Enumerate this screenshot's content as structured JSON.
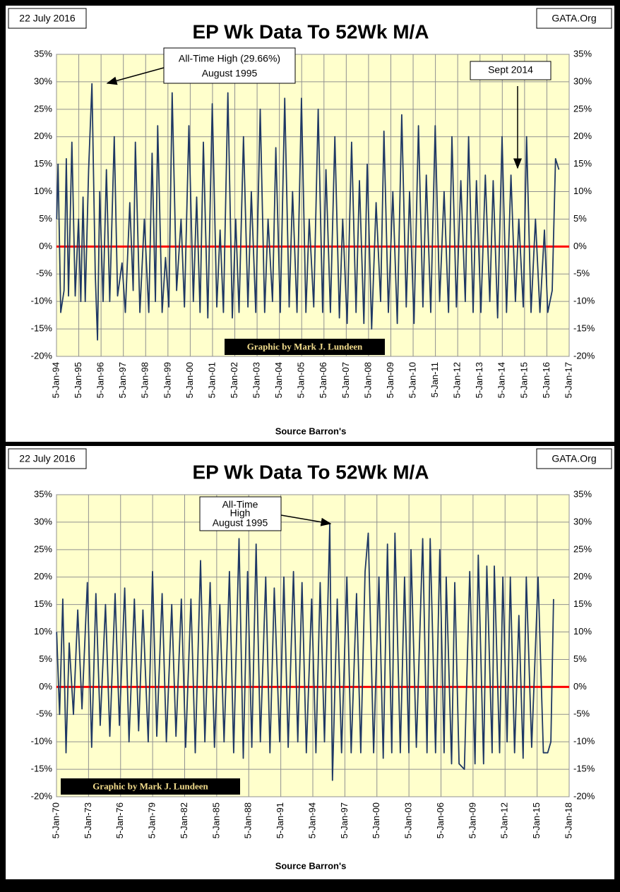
{
  "chart_data": [
    {
      "type": "line",
      "title": "EP Wk Data To 52Wk M/A",
      "date_label": "22 July 2016",
      "site_label": "GATA.Org",
      "source_label": "Source Barron's",
      "credit": "Graphic by Mark J. Lundeen",
      "annotations": [
        "All-Time High (29.66%)",
        "August 1995",
        "Sept 2014"
      ],
      "color": "#1f3864",
      "grid": true,
      "reference_line": {
        "value": 0,
        "color": "#ff0000"
      },
      "xlim": [
        1994.01,
        2017.01
      ],
      "ylim": [
        -20,
        35
      ],
      "yticks": [
        {
          "value": -20,
          "label": "-20%"
        },
        {
          "value": -15,
          "label": "-15%"
        },
        {
          "value": -10,
          "label": "-10%"
        },
        {
          "value": -5,
          "label": "-5%"
        },
        {
          "value": 0,
          "label": "0%"
        },
        {
          "value": 5,
          "label": "5%"
        },
        {
          "value": 10,
          "label": "10%"
        },
        {
          "value": 15,
          "label": "15%"
        },
        {
          "value": 20,
          "label": "20%"
        },
        {
          "value": 25,
          "label": "25%"
        },
        {
          "value": 30,
          "label": "30%"
        },
        {
          "value": 35,
          "label": "35%"
        }
      ],
      "xticks": [
        {
          "value": 1994.01,
          "label": "5-Jan-94"
        },
        {
          "value": 1995.01,
          "label": "5-Jan-95"
        },
        {
          "value": 1996.01,
          "label": "5-Jan-96"
        },
        {
          "value": 1997.01,
          "label": "5-Jan-97"
        },
        {
          "value": 1998.01,
          "label": "5-Jan-98"
        },
        {
          "value": 1999.01,
          "label": "5-Jan-99"
        },
        {
          "value": 2000.01,
          "label": "5-Jan-00"
        },
        {
          "value": 2001.01,
          "label": "5-Jan-01"
        },
        {
          "value": 2002.01,
          "label": "5-Jan-02"
        },
        {
          "value": 2003.01,
          "label": "5-Jan-03"
        },
        {
          "value": 2004.01,
          "label": "5-Jan-04"
        },
        {
          "value": 2005.01,
          "label": "5-Jan-05"
        },
        {
          "value": 2006.01,
          "label": "5-Jan-06"
        },
        {
          "value": 2007.01,
          "label": "5-Jan-07"
        },
        {
          "value": 2008.01,
          "label": "5-Jan-08"
        },
        {
          "value": 2009.01,
          "label": "5-Jan-09"
        },
        {
          "value": 2010.01,
          "label": "5-Jan-10"
        },
        {
          "value": 2011.01,
          "label": "5-Jan-11"
        },
        {
          "value": 2012.01,
          "label": "5-Jan-12"
        },
        {
          "value": 2013.01,
          "label": "5-Jan-13"
        },
        {
          "value": 2014.01,
          "label": "5-Jan-14"
        },
        {
          "value": 2015.01,
          "label": "5-Jan-15"
        },
        {
          "value": 2016.01,
          "label": "5-Jan-16"
        },
        {
          "value": 2017.01,
          "label": "5-Jan-17"
        }
      ],
      "x": [
        1994.02,
        1994.08,
        1994.2,
        1994.35,
        1994.45,
        1994.55,
        1994.7,
        1994.85,
        1995.0,
        1995.1,
        1995.2,
        1995.3,
        1995.45,
        1995.6,
        1995.75,
        1995.85,
        1995.95,
        1996.1,
        1996.25,
        1996.4,
        1996.6,
        1996.75,
        1996.95,
        1997.1,
        1997.3,
        1997.45,
        1997.55,
        1997.75,
        1997.95,
        1998.15,
        1998.3,
        1998.45,
        1998.55,
        1998.75,
        1998.9,
        1999.05,
        1999.2,
        1999.4,
        1999.6,
        1999.75,
        1999.95,
        2000.15,
        2000.3,
        2000.45,
        2000.6,
        2000.8,
        2001.0,
        2001.2,
        2001.35,
        2001.5,
        2001.7,
        2001.9,
        2002.05,
        2002.2,
        2002.4,
        2002.6,
        2002.75,
        2002.95,
        2003.15,
        2003.35,
        2003.5,
        2003.7,
        2003.85,
        2004.05,
        2004.25,
        2004.45,
        2004.6,
        2004.8,
        2005.0,
        2005.2,
        2005.35,
        2005.55,
        2005.75,
        2005.95,
        2006.1,
        2006.3,
        2006.5,
        2006.7,
        2006.85,
        2007.05,
        2007.25,
        2007.45,
        2007.6,
        2007.8,
        2007.95,
        2008.15,
        2008.35,
        2008.55,
        2008.7,
        2008.9,
        2009.1,
        2009.3,
        2009.5,
        2009.7,
        2009.85,
        2010.05,
        2010.25,
        2010.45,
        2010.6,
        2010.8,
        2011.0,
        2011.2,
        2011.4,
        2011.6,
        2011.75,
        2011.95,
        2012.15,
        2012.35,
        2012.5,
        2012.7,
        2012.85,
        2013.05,
        2013.25,
        2013.45,
        2013.6,
        2013.8,
        2014.0,
        2014.2,
        2014.4,
        2014.6,
        2014.75,
        2014.95,
        2015.1,
        2015.3,
        2015.5,
        2015.7,
        2015.9,
        2016.05,
        2016.25,
        2016.4,
        2016.55
      ],
      "values": [
        5,
        15,
        -12,
        -8,
        16,
        -9,
        19,
        -9,
        5,
        -10,
        9,
        -10,
        14,
        29.66,
        -5,
        -17,
        10,
        -10,
        14,
        -10,
        20,
        -9,
        -3,
        -12,
        8,
        -8,
        19,
        -12,
        5,
        -12,
        17,
        -10,
        22,
        -12,
        -2,
        -11,
        28,
        -8,
        5,
        -11,
        22,
        -10,
        9,
        -12,
        19,
        -13,
        26,
        -11,
        3,
        -12,
        28,
        -13,
        5,
        -12,
        20,
        -11,
        10,
        -12,
        25,
        -12,
        5,
        -10,
        18,
        -12,
        27,
        -11,
        10,
        -12,
        27,
        -12,
        5,
        -11,
        25,
        -12,
        14,
        -12,
        20,
        -13,
        5,
        -14,
        19,
        -12,
        12,
        -14,
        15,
        -15,
        8,
        -10,
        21,
        -12,
        10,
        -14,
        24,
        -11,
        10,
        -14,
        22,
        -11,
        13,
        -12,
        22,
        -10,
        10,
        -12,
        20,
        -11,
        12,
        -10,
        20,
        -12,
        12,
        -12,
        13,
        -10,
        12,
        -13,
        20,
        -12,
        13,
        -10,
        5,
        -11,
        20,
        -12,
        5,
        -12,
        3,
        -12,
        -8,
        16,
        14
      ]
    },
    {
      "type": "line",
      "title": "EP Wk Data To 52Wk M/A",
      "date_label": "22 July 2016",
      "site_label": "GATA.Org",
      "source_label": "Source Barron's",
      "credit": "Graphic by Mark J. Lundeen",
      "annotations": [
        "All-Time",
        "High",
        "August 1995"
      ],
      "color": "#1f3864",
      "grid": true,
      "reference_line": {
        "value": 0,
        "color": "#ff0000"
      },
      "xlim": [
        1970.01,
        2018.01
      ],
      "ylim": [
        -20,
        35
      ],
      "yticks": [
        {
          "value": -20,
          "label": "-20%"
        },
        {
          "value": -15,
          "label": "-15%"
        },
        {
          "value": -10,
          "label": "-10%"
        },
        {
          "value": -5,
          "label": "-5%"
        },
        {
          "value": 0,
          "label": "0%"
        },
        {
          "value": 5,
          "label": "5%"
        },
        {
          "value": 10,
          "label": "10%"
        },
        {
          "value": 15,
          "label": "15%"
        },
        {
          "value": 20,
          "label": "20%"
        },
        {
          "value": 25,
          "label": "25%"
        },
        {
          "value": 30,
          "label": "30%"
        },
        {
          "value": 35,
          "label": "35%"
        }
      ],
      "xticks": [
        {
          "value": 1970.01,
          "label": "5-Jan-70"
        },
        {
          "value": 1973.01,
          "label": "5-Jan-73"
        },
        {
          "value": 1976.01,
          "label": "5-Jan-76"
        },
        {
          "value": 1979.01,
          "label": "5-Jan-79"
        },
        {
          "value": 1982.01,
          "label": "5-Jan-82"
        },
        {
          "value": 1985.01,
          "label": "5-Jan-85"
        },
        {
          "value": 1988.01,
          "label": "5-Jan-88"
        },
        {
          "value": 1991.01,
          "label": "5-Jan-91"
        },
        {
          "value": 1994.01,
          "label": "5-Jan-94"
        },
        {
          "value": 1997.01,
          "label": "5-Jan-97"
        },
        {
          "value": 2000.01,
          "label": "5-Jan-00"
        },
        {
          "value": 2003.01,
          "label": "5-Jan-03"
        },
        {
          "value": 2006.01,
          "label": "5-Jan-06"
        },
        {
          "value": 2009.01,
          "label": "5-Jan-09"
        },
        {
          "value": 2012.01,
          "label": "5-Jan-12"
        },
        {
          "value": 2015.01,
          "label": "5-Jan-15"
        },
        {
          "value": 2018.01,
          "label": "5-Jan-18"
        }
      ],
      "x": [
        1970.02,
        1970.3,
        1970.6,
        1970.9,
        1971.2,
        1971.6,
        1972.0,
        1972.4,
        1972.9,
        1973.3,
        1973.7,
        1974.1,
        1974.6,
        1975.0,
        1975.5,
        1975.9,
        1976.4,
        1976.8,
        1977.3,
        1977.7,
        1978.1,
        1978.6,
        1979.0,
        1979.4,
        1979.9,
        1980.3,
        1980.8,
        1981.2,
        1981.7,
        1982.1,
        1982.6,
        1983.0,
        1983.5,
        1983.9,
        1984.4,
        1984.8,
        1985.3,
        1985.7,
        1986.2,
        1986.6,
        1987.1,
        1987.5,
        1987.9,
        1988.3,
        1988.7,
        1989.1,
        1989.6,
        1990.0,
        1990.4,
        1990.9,
        1991.3,
        1991.7,
        1992.2,
        1992.6,
        1993.0,
        1993.4,
        1993.9,
        1994.3,
        1994.7,
        1995.1,
        1995.6,
        1995.85,
        1996.3,
        1996.7,
        1997.2,
        1997.6,
        1998.1,
        1998.5,
        1998.9,
        1999.2,
        1999.7,
        2000.2,
        2000.6,
        2001.0,
        2001.4,
        2001.7,
        2002.2,
        2002.6,
        2003.0,
        2003.2,
        2003.7,
        2004.3,
        2004.7,
        2005.0,
        2005.5,
        2005.9,
        2006.3,
        2006.5,
        2007.0,
        2007.3,
        2007.7,
        2008.2,
        2008.7,
        2009.2,
        2009.5,
        2010.0,
        2010.3,
        2010.8,
        2011.0,
        2011.5,
        2011.8,
        2012.2,
        2012.5,
        2012.9,
        2013.3,
        2013.7,
        2014.0,
        2014.5,
        2015.1,
        2015.6,
        2016.0,
        2016.3,
        2016.55
      ],
      "values": [
        10,
        -5,
        16,
        -12,
        8,
        -5,
        14,
        -4,
        19,
        -11,
        17,
        -7,
        15,
        -9,
        17,
        -7,
        18,
        -10,
        16,
        -8,
        14,
        -10,
        21,
        -9,
        17,
        -10,
        15,
        -9,
        16,
        -11,
        16,
        -12,
        23,
        -10,
        19,
        -11,
        15,
        -10,
        21,
        -12,
        27,
        -13,
        21,
        -11,
        26,
        -10,
        20,
        -12,
        18,
        -10,
        20,
        -11,
        21,
        -10,
        19,
        -12,
        16,
        -12,
        19,
        -10,
        29.66,
        -17,
        16,
        -12,
        20,
        -12,
        17,
        -12,
        21,
        28,
        -12,
        20,
        -13,
        26,
        -12,
        28,
        -12,
        20,
        -12,
        25,
        -11,
        27,
        -12,
        27,
        -12,
        25,
        -12,
        20,
        -14,
        19,
        -14,
        -15,
        21,
        -14,
        24,
        -14,
        22,
        -12,
        22,
        -12,
        20,
        -10,
        20,
        -12,
        13,
        -13,
        20,
        -11,
        20,
        -12,
        -12,
        -10,
        16
      ]
    }
  ]
}
